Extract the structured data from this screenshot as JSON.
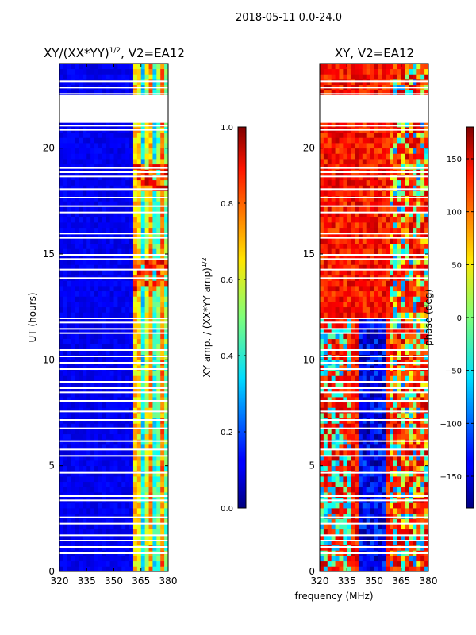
{
  "figure": {
    "suptitle": "2018-05-11 0.0-24.0",
    "xlabel": "frequency (MHz)",
    "ylabel": "UT (hours)"
  },
  "chart_data": [
    {
      "type": "heatmap",
      "title": "XY/(XX*YY)",
      "title_exp": "1/2",
      "title_suffix": ", V2=EA12",
      "xlabel": "frequency (MHz)",
      "ylabel": "UT (hours)",
      "xlim": [
        320,
        380
      ],
      "ylim": [
        0,
        24
      ],
      "xticks": [
        320,
        335,
        350,
        365,
        380
      ],
      "yticks": [
        0,
        5,
        10,
        15,
        20
      ],
      "colorbar": {
        "label": "XY amp. / (XX*YY amp)",
        "label_exp": "1/2",
        "range": [
          0.0,
          1.0
        ],
        "ticks": [
          "0.0",
          "0.2",
          "0.4",
          "0.6",
          "0.8",
          "1.0"
        ],
        "tick_values": [
          0.0,
          0.2,
          0.4,
          0.6,
          0.8,
          1.0
        ],
        "colormap": "jet"
      },
      "description_values": {
        "background_level": 0.08,
        "bright_band_freq_range": [
          360,
          380
        ],
        "bright_band_level": 0.45,
        "rfi_peak_level": 0.95,
        "rfi_peak_times_hours": [
          13.8,
          18.5
        ],
        "flagged_gap_hours": [
          21.2,
          22.5
        ]
      }
    },
    {
      "type": "heatmap",
      "title": "XY, V2=EA12",
      "xlabel": "frequency (MHz)",
      "ylabel": "",
      "xlim": [
        320,
        380
      ],
      "ylim": [
        0,
        24
      ],
      "xticks": [
        320,
        335,
        350,
        365,
        380
      ],
      "yticks": [
        0,
        5,
        10,
        15,
        20
      ],
      "colorbar": {
        "label": "phase (deg)",
        "range": [
          -180,
          180
        ],
        "ticks": [
          "−150",
          "−100",
          "−50",
          "0",
          "50",
          "100",
          "150"
        ],
        "tick_values": [
          -150,
          -100,
          -50,
          0,
          50,
          100,
          150
        ],
        "colormap": "jet"
      },
      "description_values": {
        "dominant_phase_deg": 130,
        "low_phase_freq_range": [
          340,
          355
        ],
        "low_phase_deg": -140,
        "flagged_gap_hours": [
          21.2,
          22.5
        ]
      }
    }
  ]
}
